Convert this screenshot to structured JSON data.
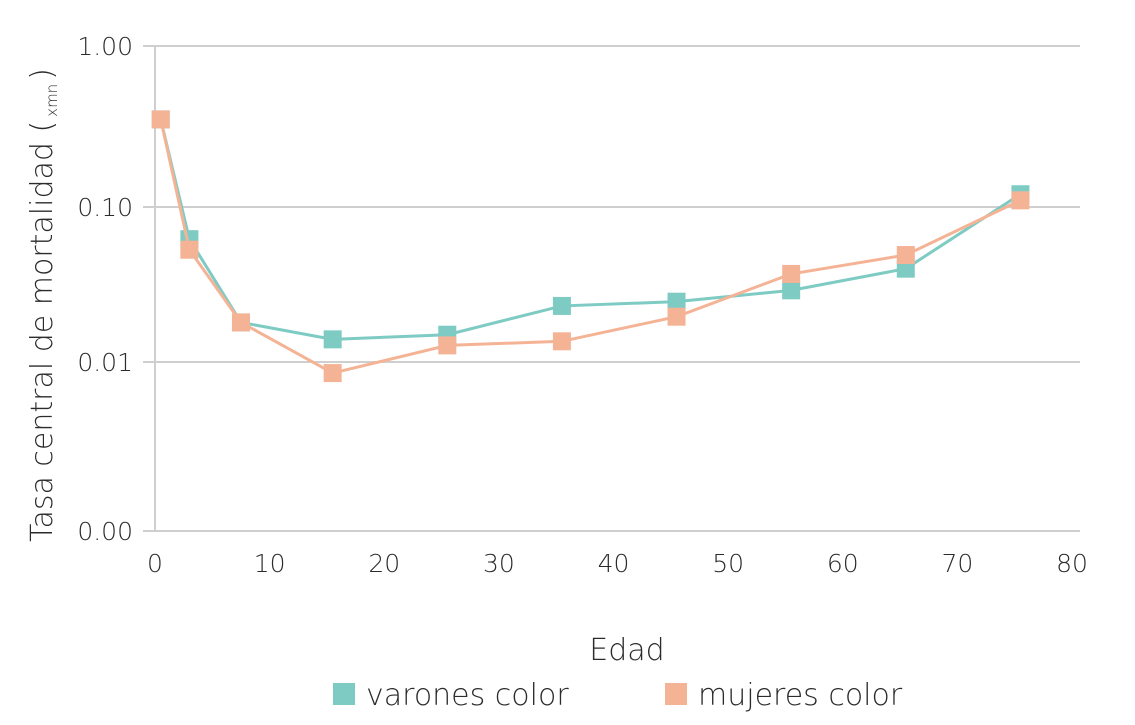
{
  "chart_data": {
    "type": "line",
    "xlabel": "Edad",
    "ylabel": "Tasa central de mortalidad (",
    "ylabel_notation": "xmn",
    "ylabel_close": ")",
    "xlim": [
      0,
      80
    ],
    "x_ticks": [
      "0",
      "10",
      "20",
      "30",
      "40",
      "50",
      "60",
      "70",
      "80"
    ],
    "y_scale": "log",
    "y_ticks": [
      {
        "label": "1.00",
        "value": 1.0
      },
      {
        "label": "0.10",
        "value": 0.1
      },
      {
        "label": "0.01",
        "value": 0.01
      },
      {
        "label": "0.00",
        "value": 0.001
      }
    ],
    "grid": true,
    "legend_position": "bottom",
    "series": [
      {
        "name": "varones color",
        "color": "#7ecbc4",
        "marker": "square",
        "points": [
          {
            "x": 0.5,
            "y": 0.35
          },
          {
            "x": 3,
            "y": 0.062
          },
          {
            "x": 7.5,
            "y": 0.018
          },
          {
            "x": 15.5,
            "y": 0.014
          },
          {
            "x": 25.5,
            "y": 0.015
          },
          {
            "x": 35.5,
            "y": 0.023
          },
          {
            "x": 45.5,
            "y": 0.0245
          },
          {
            "x": 55.5,
            "y": 0.029
          },
          {
            "x": 65.5,
            "y": 0.04
          },
          {
            "x": 75.5,
            "y": 0.12
          }
        ]
      },
      {
        "name": "mujeres color",
        "color": "#f5b396",
        "marker": "square",
        "points": [
          {
            "x": 0.5,
            "y": 0.35
          },
          {
            "x": 3,
            "y": 0.053
          },
          {
            "x": 7.5,
            "y": 0.018
          },
          {
            "x": 15.5,
            "y": 0.0086
          },
          {
            "x": 25.5,
            "y": 0.0128
          },
          {
            "x": 35.5,
            "y": 0.0136
          },
          {
            "x": 45.5,
            "y": 0.0196
          },
          {
            "x": 55.5,
            "y": 0.037
          },
          {
            "x": 65.5,
            "y": 0.049
          },
          {
            "x": 75.5,
            "y": 0.11
          }
        ]
      }
    ]
  }
}
